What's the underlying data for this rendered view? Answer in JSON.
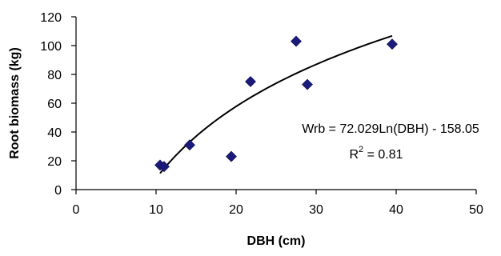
{
  "chart_data": {
    "type": "scatter",
    "xlabel": "DBH (cm)",
    "ylabel": "Root biomass (kg)",
    "xlim": [
      0,
      50
    ],
    "ylim": [
      0,
      120
    ],
    "xticks": [
      0,
      10,
      20,
      30,
      40,
      50
    ],
    "yticks": [
      0,
      20,
      40,
      60,
      80,
      100,
      120
    ],
    "grid": false,
    "marker_color": "#1a1a7a",
    "series": [
      {
        "points": [
          {
            "x": 10.5,
            "y": 17
          },
          {
            "x": 11.0,
            "y": 16
          },
          {
            "x": 14.2,
            "y": 31
          },
          {
            "x": 19.4,
            "y": 23
          },
          {
            "x": 21.8,
            "y": 75
          },
          {
            "x": 27.5,
            "y": 103
          },
          {
            "x": 28.9,
            "y": 73
          },
          {
            "x": 39.5,
            "y": 101
          }
        ]
      }
    ],
    "trendline": {
      "type": "logarithmic",
      "a": 72.029,
      "b": -158.05,
      "x_range": [
        10.5,
        39.5
      ],
      "equation": "Wrb = 72.029Ln(DBH) - 158.05",
      "r2_prefix": "R",
      "r2_superscript": "2",
      "r2_suffix": " = 0.81"
    }
  }
}
